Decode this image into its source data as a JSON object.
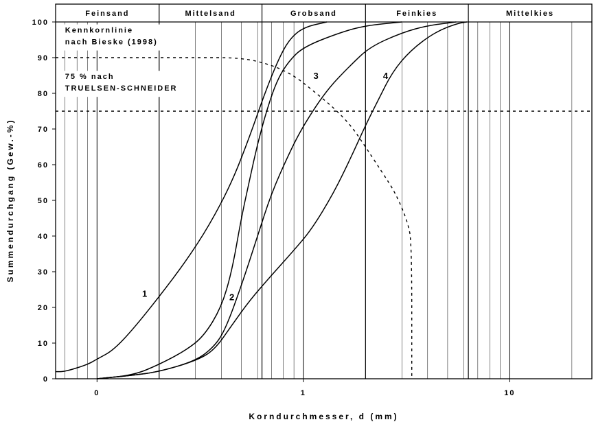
{
  "chart_data": {
    "type": "line",
    "ylabel": "Summendurchgang (Gew.-%)",
    "xlabel": "Korndurchmesser, d (mm)",
    "y_ticks": [
      "0",
      "10",
      "20",
      "30",
      "40",
      "50",
      "60",
      "70",
      "80",
      "90",
      "100"
    ],
    "x_ticks": [
      "0",
      "1",
      "10"
    ],
    "ylim": [
      0,
      100
    ],
    "xlim": [
      0.063,
      25
    ],
    "x_scale": "log",
    "grid": true,
    "bands": [
      {
        "label": "Feinsand",
        "from": 0.063,
        "to": 0.2
      },
      {
        "label": "Mittelsand",
        "from": 0.2,
        "to": 0.63
      },
      {
        "label": "Grobsand",
        "from": 0.63,
        "to": 2
      },
      {
        "label": "Feinkies",
        "from": 2,
        "to": 6.3
      },
      {
        "label": "Mittelkies",
        "from": 6.3,
        "to": 25
      }
    ],
    "annotations": [
      {
        "lines": [
          "Kennkornlinie",
          "nach Bieske (1998)"
        ],
        "x": 0.07,
        "y": 97
      },
      {
        "lines": [
          "75 % nach",
          "TRUELSEN-SCHNEIDER"
        ],
        "x": 0.07,
        "y": 84
      }
    ],
    "reference_lines": [
      {
        "label": "75 %",
        "y": 75
      }
    ],
    "series": [
      {
        "name": "1",
        "label_at": {
          "x": 0.17,
          "y": 23
        },
        "points": [
          [
            0.063,
            2
          ],
          [
            0.07,
            2
          ],
          [
            0.09,
            4
          ],
          [
            0.1,
            5.5
          ],
          [
            0.12,
            8
          ],
          [
            0.15,
            14
          ],
          [
            0.2,
            23
          ],
          [
            0.27,
            33
          ],
          [
            0.35,
            43
          ],
          [
            0.45,
            55
          ],
          [
            0.55,
            68
          ],
          [
            0.65,
            80
          ],
          [
            0.75,
            89
          ],
          [
            0.85,
            95
          ],
          [
            1.0,
            98.5
          ],
          [
            1.3,
            100
          ]
        ]
      },
      {
        "name": "2",
        "label_at": {
          "x": 0.45,
          "y": 22
        },
        "points": [
          [
            0.1,
            0
          ],
          [
            0.15,
            1
          ],
          [
            0.2,
            4
          ],
          [
            0.27,
            8
          ],
          [
            0.33,
            12
          ],
          [
            0.4,
            20
          ],
          [
            0.45,
            30
          ],
          [
            0.5,
            45
          ],
          [
            0.55,
            56
          ],
          [
            0.6,
            66
          ],
          [
            0.67,
            76
          ],
          [
            0.75,
            84
          ],
          [
            0.85,
            89
          ],
          [
            1.0,
            93
          ],
          [
            1.5,
            97
          ],
          [
            2.0,
            99
          ],
          [
            3.0,
            100
          ]
        ]
      },
      {
        "name": "3",
        "label_at": {
          "x": 1.15,
          "y": 84
        },
        "points": [
          [
            0.1,
            0
          ],
          [
            0.15,
            1
          ],
          [
            0.2,
            2
          ],
          [
            0.3,
            5
          ],
          [
            0.37,
            9
          ],
          [
            0.42,
            14
          ],
          [
            0.5,
            26
          ],
          [
            0.6,
            40
          ],
          [
            0.7,
            52
          ],
          [
            0.85,
            63
          ],
          [
            1.0,
            71
          ],
          [
            1.3,
            81
          ],
          [
            1.7,
            88
          ],
          [
            2.1,
            93
          ],
          [
            3.0,
            97
          ],
          [
            4.0,
            99
          ],
          [
            5.5,
            100
          ]
        ]
      },
      {
        "name": "4",
        "label_at": {
          "x": 2.5,
          "y": 84
        },
        "points": [
          [
            0.1,
            0
          ],
          [
            0.15,
            1
          ],
          [
            0.2,
            2
          ],
          [
            0.3,
            5
          ],
          [
            0.37,
            8
          ],
          [
            0.45,
            15
          ],
          [
            0.55,
            22
          ],
          [
            0.7,
            29
          ],
          [
            0.9,
            36
          ],
          [
            1.1,
            42
          ],
          [
            1.4,
            52
          ],
          [
            1.7,
            62
          ],
          [
            2.0,
            71
          ],
          [
            2.3,
            78
          ],
          [
            2.7,
            86
          ],
          [
            3.3,
            92
          ],
          [
            4.3,
            97
          ],
          [
            5.5,
            99.5
          ],
          [
            6.2,
            100
          ]
        ]
      },
      {
        "name": "Kennkornlinie nach Bieske (1998)",
        "dashed": true,
        "points": [
          [
            0.063,
            90
          ],
          [
            0.3,
            90
          ],
          [
            0.5,
            90
          ],
          [
            0.7,
            88
          ],
          [
            0.9,
            85
          ],
          [
            1.1,
            81
          ],
          [
            1.4,
            76
          ],
          [
            1.7,
            71
          ],
          [
            2.0,
            65
          ],
          [
            2.4,
            58
          ],
          [
            2.8,
            52
          ],
          [
            3.2,
            44
          ],
          [
            3.35,
            38
          ],
          [
            3.35,
            0
          ]
        ]
      }
    ]
  }
}
